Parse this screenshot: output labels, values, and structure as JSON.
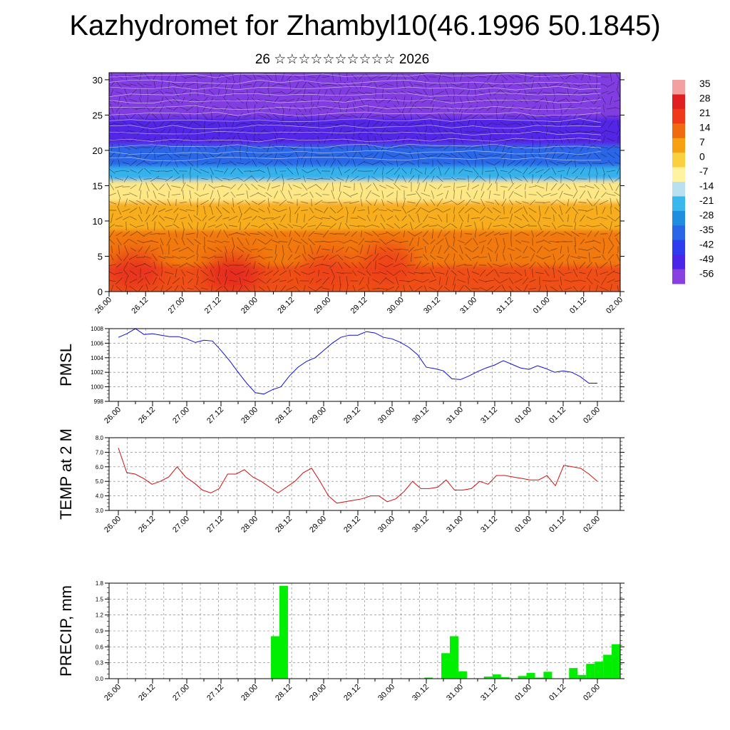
{
  "header": {
    "title": "Kazhydromet for Zhambyl10(46.1996 50.1845)",
    "subtitle": "26 ☆☆☆☆☆☆☆☆☆☆ 2026"
  },
  "time_labels": [
    "26.00",
    "26.12",
    "27.00",
    "27.12",
    "28.00",
    "28.12",
    "29.00",
    "29.12",
    "30.00",
    "30.12",
    "31.00",
    "31.12",
    "01.00",
    "01.12",
    "02.00"
  ],
  "chart_data": [
    {
      "type": "heatmap",
      "title": "",
      "x_categories": [
        "26.00",
        "26.12",
        "27.00",
        "27.12",
        "28.00",
        "28.12",
        "29.00",
        "29.12",
        "30.00",
        "30.12",
        "31.00",
        "31.12",
        "01.00",
        "01.12",
        "02.00"
      ],
      "y_ticks": [
        0,
        5,
        10,
        15,
        20,
        25,
        30
      ],
      "ylim": [
        0,
        31
      ],
      "colorbar": {
        "labels": [
          "35",
          "28",
          "21",
          "14",
          "7",
          "0",
          "-7",
          "-14",
          "-21",
          "-28",
          "-35",
          "-42",
          "-49",
          "-56"
        ],
        "colors": [
          "#f4a0a0",
          "#e02020",
          "#ee3a1a",
          "#f06a10",
          "#f7a010",
          "#fbd040",
          "#fff2a0",
          "#b8e0f0",
          "#3ab8ee",
          "#1e8ee0",
          "#2a66e8",
          "#2e3cf0",
          "#4a24e8",
          "#8a40e0"
        ]
      },
      "bands": [
        {
          "y0": 0,
          "y1": 4,
          "value": 18
        },
        {
          "y0": 4,
          "y1": 9,
          "value": 12
        },
        {
          "y0": 9,
          "y1": 13,
          "value": 5
        },
        {
          "y0": 13,
          "y1": 16,
          "value": -5
        },
        {
          "y0": 16,
          "y1": 18,
          "value": -22
        },
        {
          "y0": 18,
          "y1": 21,
          "value": -35
        },
        {
          "y0": 21,
          "y1": 25,
          "value": -50
        },
        {
          "y0": 25,
          "y1": 31,
          "value": -55
        }
      ],
      "warm_spots": [
        {
          "x": 0.7,
          "y": 3,
          "value": 24
        },
        {
          "x": 3.4,
          "y": 2.5,
          "value": 26
        },
        {
          "x": 6.0,
          "y": 3,
          "value": 20
        },
        {
          "x": 7.6,
          "y": 4,
          "value": 21
        }
      ]
    },
    {
      "type": "line",
      "ylabel": "PMSL",
      "ylim": [
        998,
        1008
      ],
      "y_ticks": [
        "998",
        "1000",
        "1002",
        "1004",
        "1006",
        "1008"
      ],
      "line_color": "#1010d0",
      "series": [
        {
          "values": [
            1006.8,
            1007.3,
            1008.0,
            1007.2,
            1007.3,
            1007.1,
            1006.9,
            1006.9,
            1006.6,
            1006.1,
            1006.4,
            1006.3,
            1005.0,
            1003.6,
            1002.0,
            1000.5,
            999.2,
            999.0,
            999.6,
            1000.0,
            1001.5,
            1002.7,
            1003.5,
            1004.0,
            1005.0,
            1006.0,
            1006.8,
            1007.1,
            1007.1,
            1007.6,
            1007.4,
            1006.8,
            1006.6,
            1006.1,
            1005.4,
            1004.4,
            1002.7,
            1002.5,
            1002.2,
            1001.1,
            1001.0,
            1001.5,
            1002.1,
            1002.6,
            1003.0,
            1003.6,
            1003.1,
            1002.6,
            1002.4,
            1002.9,
            1002.5,
            1002.0,
            1002.2,
            1002.0,
            1001.4,
            1000.5,
            1000.5
          ]
        }
      ]
    },
    {
      "type": "line",
      "ylabel": "TEMP at 2 M",
      "ylim": [
        3.0,
        8.0
      ],
      "y_ticks": [
        "3.0",
        "4.0",
        "5.0",
        "6.0",
        "7.0",
        "8.0"
      ],
      "line_color": "#d01010",
      "series": [
        {
          "values": [
            7.3,
            5.6,
            5.5,
            5.2,
            4.8,
            5.0,
            5.3,
            6.0,
            5.3,
            4.9,
            4.4,
            4.2,
            4.5,
            5.5,
            5.5,
            5.8,
            5.3,
            5.0,
            4.6,
            4.2,
            4.6,
            5.0,
            5.6,
            5.9,
            5.0,
            4.0,
            3.5,
            3.6,
            3.7,
            3.8,
            4.0,
            4.0,
            3.6,
            3.8,
            4.3,
            5.0,
            4.5,
            4.5,
            4.6,
            5.1,
            4.4,
            4.4,
            4.5,
            5.0,
            4.8,
            5.4,
            5.4,
            5.3,
            5.2,
            5.1,
            5.1,
            5.4,
            4.7,
            6.1,
            6.0,
            5.9,
            5.5,
            5.0
          ]
        }
      ]
    },
    {
      "type": "bar",
      "ylabel": "PRECIP, mm",
      "ylim": [
        0,
        1.8
      ],
      "y_ticks": [
        "0.0",
        "0.3",
        "0.6",
        "0.9",
        "1.2",
        "1.5",
        "1.8"
      ],
      "bar_color": "#00ee00",
      "series": [
        {
          "values": [
            0,
            0,
            0,
            0,
            0,
            0,
            0,
            0,
            0,
            0,
            0,
            0,
            0,
            0,
            0,
            0,
            0,
            0,
            0,
            0.8,
            1.75,
            0,
            0,
            0,
            0,
            0,
            0,
            0,
            0,
            0,
            0,
            0,
            0,
            0,
            0,
            0,
            0,
            0.02,
            0,
            0.48,
            0.8,
            0.14,
            0,
            0,
            0.04,
            0.08,
            0.03,
            0,
            0.05,
            0.11,
            0.02,
            0.13,
            0,
            0,
            0.2,
            0.07,
            0.28,
            0.32,
            0.45,
            0.65
          ]
        }
      ]
    }
  ]
}
